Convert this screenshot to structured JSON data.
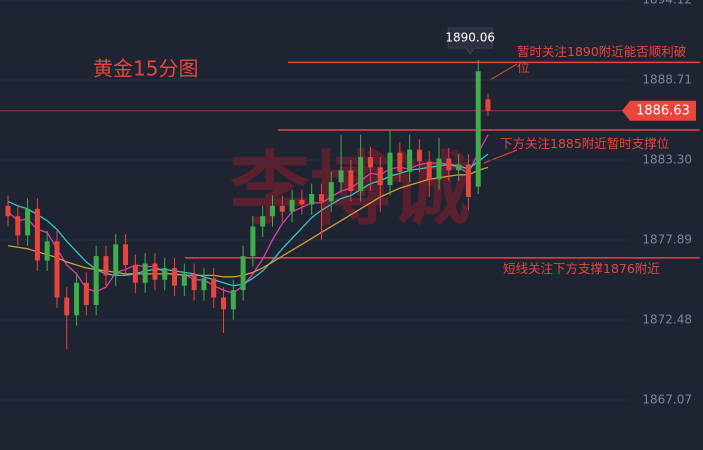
{
  "chart_data": {
    "type": "candlestick",
    "title": "黄金15分图",
    "watermark": "李博诚",
    "ylim": [
      1863.69,
      1894.12
    ],
    "yticks": [
      1894.12,
      1888.71,
      {
        "value": 1883.3,
        "label": "1883.30"
      },
      1877.89,
      1872.48,
      1867.07
    ],
    "grid": true,
    "up_color": "#3fae4a",
    "down_color": "#e8453c",
    "open": [
      1880.2,
      1879.5,
      1878.2,
      1880.0,
      1876.5,
      1877.8,
      1874.0,
      1872.8,
      1875.0,
      1873.5,
      1876.8,
      1875.5,
      1877.6,
      1876.2,
      1875.0,
      1876.3,
      1875.2,
      1876.0,
      1874.8,
      1875.6,
      1874.5,
      1875.3,
      1874.0,
      1873.2,
      1874.5,
      1876.8,
      1878.8,
      1879.5,
      1880.2,
      1879.8,
      1880.6,
      1880.3,
      1881.0,
      1880.5,
      1881.8,
      1882.6,
      1881.2,
      1883.5,
      1882.8,
      1881.6,
      1883.8,
      1882.5,
      1884.0,
      1883.2,
      1882.0,
      1883.4,
      1882.6,
      1883.0,
      1881.5,
      1887.4
    ],
    "high": [
      1880.9,
      1880.2,
      1880.7,
      1880.7,
      1878.5,
      1878.5,
      1874.7,
      1875.7,
      1875.7,
      1877.5,
      1877.5,
      1878.3,
      1878.3,
      1876.9,
      1877.0,
      1877.0,
      1876.7,
      1876.7,
      1876.3,
      1876.3,
      1876.0,
      1876.0,
      1874.7,
      1875.2,
      1877.5,
      1879.5,
      1880.2,
      1880.9,
      1880.9,
      1881.3,
      1881.3,
      1881.7,
      1881.7,
      1882.5,
      1885.0,
      1883.3,
      1885.0,
      1884.2,
      1883.5,
      1885.3,
      1884.5,
      1885.0,
      1884.7,
      1883.9,
      1884.8,
      1884.1,
      1883.7,
      1883.7,
      1890.06,
      1887.8
    ],
    "low": [
      1878.8,
      1877.5,
      1877.5,
      1875.8,
      1875.8,
      1873.3,
      1870.5,
      1872.1,
      1872.8,
      1872.8,
      1874.8,
      1874.8,
      1875.5,
      1874.3,
      1874.3,
      1874.5,
      1874.5,
      1874.1,
      1874.1,
      1873.8,
      1873.8,
      1873.3,
      1871.6,
      1872.5,
      1873.8,
      1876.1,
      1878.1,
      1878.8,
      1879.1,
      1879.1,
      1879.6,
      1879.6,
      1877.9,
      1879.8,
      1881.1,
      1880.5,
      1880.5,
      1881.2,
      1879.8,
      1880.9,
      1881.8,
      1881.8,
      1882.5,
      1880.8,
      1881.3,
      1881.9,
      1881.9,
      1879.9,
      1881.0,
      1886.3
    ],
    "close": [
      1879.5,
      1878.2,
      1880.0,
      1876.5,
      1877.8,
      1874.0,
      1872.8,
      1875.0,
      1873.5,
      1876.8,
      1875.5,
      1877.6,
      1876.2,
      1875.0,
      1876.3,
      1875.2,
      1876.0,
      1874.8,
      1875.6,
      1874.5,
      1875.3,
      1874.0,
      1873.2,
      1874.5,
      1876.8,
      1878.8,
      1879.5,
      1880.2,
      1879.8,
      1880.6,
      1880.3,
      1881.0,
      1880.5,
      1881.8,
      1882.6,
      1881.2,
      1883.5,
      1882.8,
      1881.6,
      1883.8,
      1882.5,
      1884.0,
      1883.2,
      1882.0,
      1883.4,
      1882.6,
      1883.0,
      1880.8,
      1889.3,
      1886.63
    ],
    "series": [
      {
        "color": "#e03ca8",
        "values": [
          1879.8,
          1879.2,
          1879.3,
          1878.6,
          1878.4,
          1877.3,
          1876.2,
          1875.6,
          1874.6,
          1874.4,
          1874.7,
          1875.7,
          1875.9,
          1876.2,
          1876.1,
          1876.1,
          1875.7,
          1875.5,
          1875.6,
          1875.2,
          1875.2,
          1874.8,
          1874.5,
          1874.3,
          1874.8,
          1875.6,
          1876.6,
          1877.9,
          1879.0,
          1879.8,
          1880.1,
          1880.4,
          1880.4,
          1880.8,
          1881.2,
          1881.4,
          1881.9,
          1882.4,
          1882.3,
          1882.7,
          1882.8,
          1882.7,
          1883.0,
          1883.1,
          1883.1,
          1883.0,
          1882.8,
          1882.4,
          1883.8,
          1885.0
        ]
      },
      {
        "color": "#2ec8c8",
        "values": [
          1880.5,
          1880.2,
          1880.0,
          1879.6,
          1879.2,
          1878.6,
          1877.8,
          1877.1,
          1876.4,
          1875.9,
          1875.6,
          1875.5,
          1875.5,
          1875.6,
          1875.8,
          1875.9,
          1875.9,
          1875.8,
          1875.7,
          1875.6,
          1875.4,
          1875.2,
          1875.0,
          1874.8,
          1874.9,
          1875.3,
          1875.8,
          1876.5,
          1877.3,
          1878.0,
          1878.7,
          1879.4,
          1879.9,
          1880.3,
          1880.7,
          1880.9,
          1881.3,
          1881.7,
          1881.9,
          1882.2,
          1882.4,
          1882.6,
          1882.7,
          1882.8,
          1882.9,
          1883.0,
          1882.9,
          1882.7,
          1883.2,
          1883.7
        ]
      },
      {
        "color": "#d89a3a",
        "values": [
          1877.5,
          1877.4,
          1877.3,
          1877.1,
          1876.9,
          1876.7,
          1876.4,
          1876.2,
          1876.0,
          1875.9,
          1875.8,
          1875.7,
          1875.6,
          1875.6,
          1875.6,
          1875.6,
          1875.6,
          1875.6,
          1875.5,
          1875.5,
          1875.5,
          1875.5,
          1875.4,
          1875.4,
          1875.5,
          1875.7,
          1876.0,
          1876.4,
          1876.8,
          1877.2,
          1877.6,
          1878.0,
          1878.4,
          1878.8,
          1879.2,
          1879.6,
          1880.0,
          1880.4,
          1880.8,
          1881.1,
          1881.4,
          1881.6,
          1881.8,
          1882.0,
          1882.1,
          1882.2,
          1882.3,
          1882.3,
          1882.6,
          1882.8
        ]
      }
    ],
    "levels": [
      {
        "value": 1889.9,
        "text": "暂时关注1890附近能否顺利破位",
        "color": "#e8453c"
      },
      {
        "value": 1885.33,
        "text": "下方关注1885附近暂时支撑位",
        "color": "#e8453c"
      },
      {
        "value": 1876.68,
        "text": "短线关注下方支撑1876附近",
        "color": "#e8453c"
      }
    ]
  }
}
